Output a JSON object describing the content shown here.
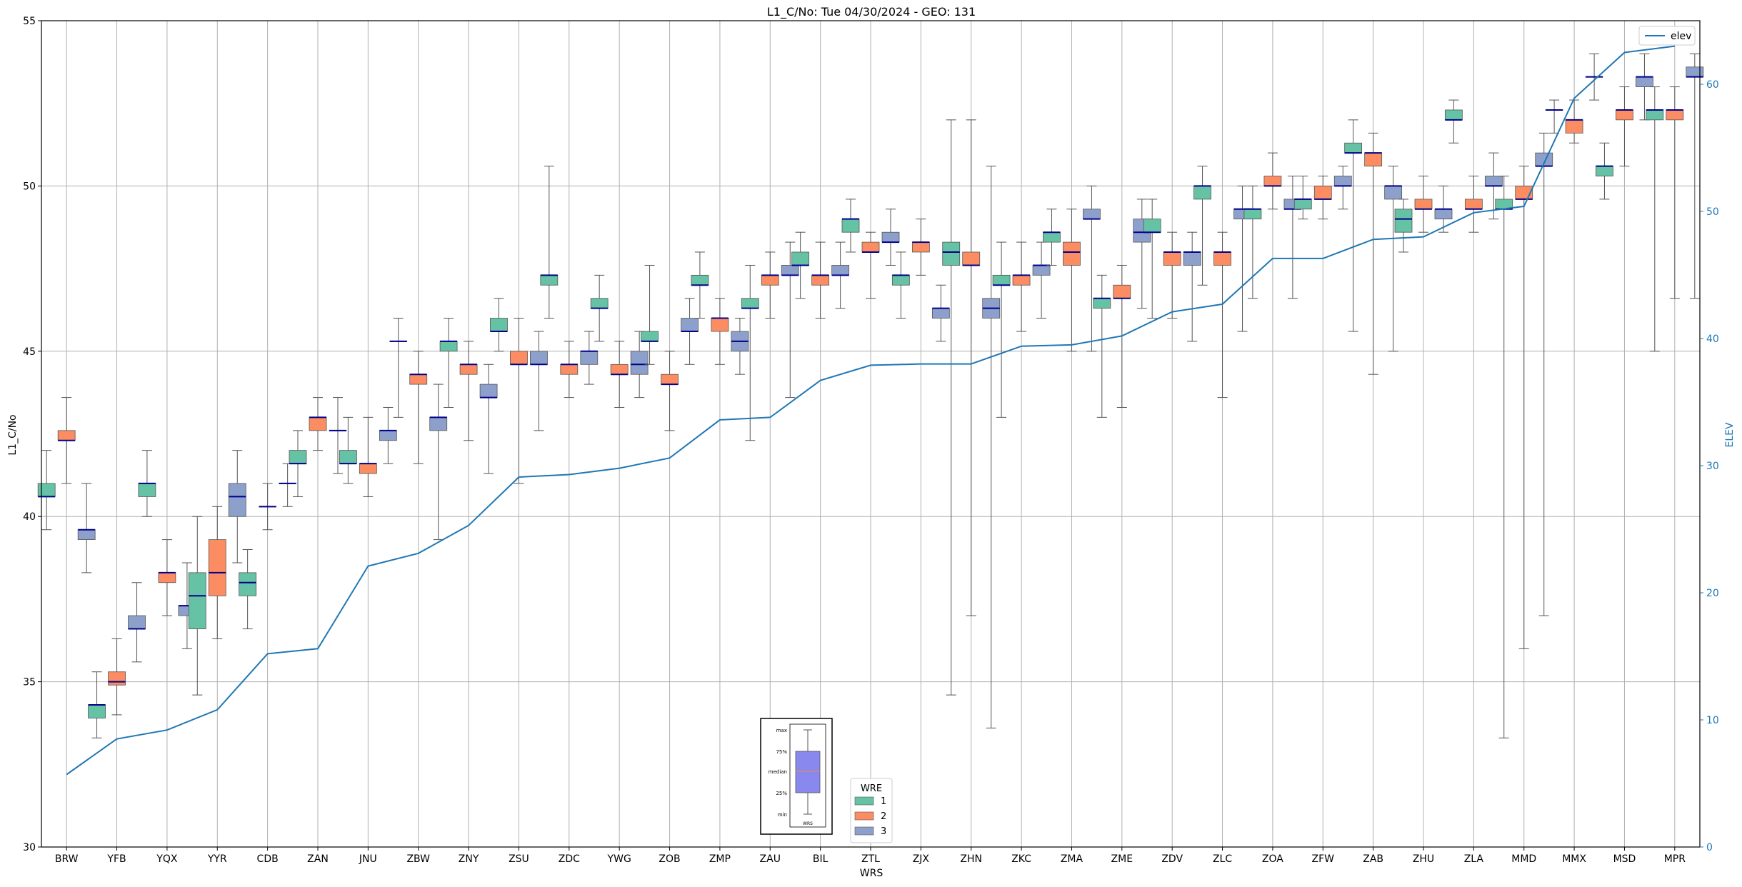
{
  "chart_data": {
    "type": "box",
    "title": "L1_C/No: Tue 04/30/2024 - GEO: 131",
    "xlabel": "WRS",
    "ylabel": "L1_C/No",
    "ylabel2": "ELEV",
    "ylim": [
      30,
      55
    ],
    "ylim2": [
      0,
      65
    ],
    "yticks": [
      "30",
      "35",
      "40",
      "45",
      "50",
      "55"
    ],
    "yticks2": [
      "0",
      "10",
      "20",
      "30",
      "40",
      "50",
      "60"
    ],
    "grid": true,
    "colors": {
      "wre1": "#66c2a5",
      "wre2": "#fc8d62",
      "wre3": "#8da0cb",
      "elev": "#1f77b4",
      "median": "#00008b"
    },
    "categories": [
      "BRW",
      "YFB",
      "YQX",
      "YYR",
      "CDB",
      "ZAN",
      "JNU",
      "ZBW",
      "ZNY",
      "ZSU",
      "ZDC",
      "YWG",
      "ZOB",
      "ZMP",
      "ZAU",
      "BIL",
      "ZTL",
      "ZJX",
      "ZHN",
      "ZKC",
      "ZMA",
      "ZME",
      "ZDV",
      "ZLC",
      "ZOA",
      "ZFW",
      "ZAB",
      "ZHU",
      "ZLA",
      "MMD",
      "MMX",
      "MSD",
      "MPR"
    ],
    "legend_wre": {
      "title": "WRE",
      "entries": [
        "1",
        "2",
        "3"
      ],
      "position": "bottom-center"
    },
    "legend_line": {
      "entries": [
        "elev"
      ],
      "position": "top-right"
    },
    "inset_key": {
      "labels": [
        "max",
        "75%",
        "median",
        "25%",
        "min"
      ],
      "xlabel": "WRS"
    },
    "elev_series": {
      "name": "elev",
      "values": [
        5.7,
        8.5,
        9.2,
        10.8,
        15.2,
        15.6,
        22.1,
        23.1,
        25.3,
        29.1,
        29.3,
        29.8,
        30.6,
        33.6,
        33.8,
        36.7,
        37.9,
        38.0,
        38.0,
        39.4,
        39.5,
        40.2,
        42.1,
        42.7,
        46.3,
        46.3,
        47.8,
        48.0,
        49.9,
        50.4,
        58.9,
        62.5,
        63.0
      ]
    },
    "boxes": [
      {
        "cat": "BRW",
        "wre": "1",
        "min": 39.6,
        "q1": 40.6,
        "median": 40.6,
        "q3": 41.0,
        "max": 42.0
      },
      {
        "cat": "BRW",
        "wre": "2",
        "min": 41.0,
        "q1": 42.3,
        "median": 42.3,
        "q3": 42.6,
        "max": 43.6
      },
      {
        "cat": "BRW",
        "wre": "3",
        "min": 38.3,
        "q1": 39.3,
        "median": 39.6,
        "q3": 39.6,
        "max": 41.0
      },
      {
        "cat": "YFB",
        "wre": "1",
        "min": 33.3,
        "q1": 33.9,
        "median": 34.3,
        "q3": 34.3,
        "max": 35.3
      },
      {
        "cat": "YFB",
        "wre": "2",
        "min": 34.0,
        "q1": 34.9,
        "median": 35.0,
        "q3": 35.3,
        "max": 36.3
      },
      {
        "cat": "YFB",
        "wre": "3",
        "min": 35.6,
        "q1": 36.6,
        "median": 36.6,
        "q3": 37.0,
        "max": 38.0
      },
      {
        "cat": "YQX",
        "wre": "1",
        "min": 40.0,
        "q1": 40.6,
        "median": 41.0,
        "q3": 41.0,
        "max": 42.0
      },
      {
        "cat": "YQX",
        "wre": "2",
        "min": 37.0,
        "q1": 38.0,
        "median": 38.3,
        "q3": 38.3,
        "max": 39.3
      },
      {
        "cat": "YQX",
        "wre": "3",
        "min": 36.0,
        "q1": 37.0,
        "median": 37.3,
        "q3": 37.3,
        "max": 38.6
      },
      {
        "cat": "YYR",
        "wre": "1",
        "min": 34.6,
        "q1": 36.6,
        "median": 37.6,
        "q3": 38.3,
        "max": 40.0
      },
      {
        "cat": "YYR",
        "wre": "2",
        "min": 36.3,
        "q1": 37.6,
        "median": 38.3,
        "q3": 39.3,
        "max": 40.3
      },
      {
        "cat": "YYR",
        "wre": "3",
        "min": 38.6,
        "q1": 40.0,
        "median": 40.6,
        "q3": 41.0,
        "max": 42.0
      },
      {
        "cat": "CDB",
        "wre": "1",
        "min": 36.6,
        "q1": 37.6,
        "median": 38.0,
        "q3": 38.3,
        "max": 39.0
      },
      {
        "cat": "CDB",
        "wre": "2",
        "min": 39.6,
        "q1": 40.3,
        "median": 40.3,
        "q3": 40.3,
        "max": 41.0
      },
      {
        "cat": "CDB",
        "wre": "3",
        "min": 40.3,
        "q1": 41.0,
        "median": 41.0,
        "q3": 41.0,
        "max": 41.6
      },
      {
        "cat": "ZAN",
        "wre": "1",
        "min": 40.6,
        "q1": 41.6,
        "median": 41.6,
        "q3": 42.0,
        "max": 42.6
      },
      {
        "cat": "ZAN",
        "wre": "2",
        "min": 42.0,
        "q1": 42.6,
        "median": 43.0,
        "q3": 43.0,
        "max": 43.6
      },
      {
        "cat": "ZAN",
        "wre": "3",
        "min": 41.3,
        "q1": 42.6,
        "median": 42.6,
        "q3": 42.6,
        "max": 43.6
      },
      {
        "cat": "JNU",
        "wre": "1",
        "min": 41.0,
        "q1": 41.6,
        "median": 41.6,
        "q3": 42.0,
        "max": 43.0
      },
      {
        "cat": "JNU",
        "wre": "2",
        "min": 40.6,
        "q1": 41.3,
        "median": 41.6,
        "q3": 41.6,
        "max": 43.0
      },
      {
        "cat": "JNU",
        "wre": "3",
        "min": 41.6,
        "q1": 42.3,
        "median": 42.6,
        "q3": 42.6,
        "max": 43.3
      },
      {
        "cat": "ZBW",
        "wre": "1",
        "min": 43.0,
        "q1": 45.3,
        "median": 45.3,
        "q3": 45.3,
        "max": 46.0
      },
      {
        "cat": "ZBW",
        "wre": "2",
        "min": 41.6,
        "q1": 44.0,
        "median": 44.3,
        "q3": 44.3,
        "max": 45.0
      },
      {
        "cat": "ZBW",
        "wre": "3",
        "min": 39.3,
        "q1": 42.6,
        "median": 43.0,
        "q3": 43.0,
        "max": 44.0
      },
      {
        "cat": "ZNY",
        "wre": "1",
        "min": 43.3,
        "q1": 45.0,
        "median": 45.3,
        "q3": 45.3,
        "max": 46.0
      },
      {
        "cat": "ZNY",
        "wre": "2",
        "min": 42.3,
        "q1": 44.3,
        "median": 44.6,
        "q3": 44.6,
        "max": 45.3
      },
      {
        "cat": "ZNY",
        "wre": "3",
        "min": 41.3,
        "q1": 43.6,
        "median": 43.6,
        "q3": 44.0,
        "max": 44.6
      },
      {
        "cat": "ZSU",
        "wre": "1",
        "min": 45.0,
        "q1": 45.6,
        "median": 45.6,
        "q3": 46.0,
        "max": 46.6
      },
      {
        "cat": "ZSU",
        "wre": "2",
        "min": 41.0,
        "q1": 44.6,
        "median": 44.6,
        "q3": 45.0,
        "max": 46.0
      },
      {
        "cat": "ZSU",
        "wre": "3",
        "min": 42.6,
        "q1": 44.6,
        "median": 44.6,
        "q3": 45.0,
        "max": 45.6
      },
      {
        "cat": "ZDC",
        "wre": "1",
        "min": 46.0,
        "q1": 47.0,
        "median": 47.3,
        "q3": 47.3,
        "max": 50.6
      },
      {
        "cat": "ZDC",
        "wre": "2",
        "min": 43.6,
        "q1": 44.3,
        "median": 44.6,
        "q3": 44.6,
        "max": 45.3
      },
      {
        "cat": "ZDC",
        "wre": "3",
        "min": 44.0,
        "q1": 44.6,
        "median": 45.0,
        "q3": 45.0,
        "max": 45.6
      },
      {
        "cat": "YWG",
        "wre": "1",
        "min": 45.3,
        "q1": 46.3,
        "median": 46.3,
        "q3": 46.6,
        "max": 47.3
      },
      {
        "cat": "YWG",
        "wre": "2",
        "min": 43.3,
        "q1": 44.3,
        "median": 44.3,
        "q3": 44.6,
        "max": 45.3
      },
      {
        "cat": "YWG",
        "wre": "3",
        "min": 43.6,
        "q1": 44.3,
        "median": 44.6,
        "q3": 45.0,
        "max": 45.6
      },
      {
        "cat": "ZOB",
        "wre": "1",
        "min": 44.6,
        "q1": 45.3,
        "median": 45.3,
        "q3": 45.6,
        "max": 47.6
      },
      {
        "cat": "ZOB",
        "wre": "2",
        "min": 42.6,
        "q1": 44.0,
        "median": 44.0,
        "q3": 44.3,
        "max": 45.0
      },
      {
        "cat": "ZOB",
        "wre": "3",
        "min": 44.6,
        "q1": 45.6,
        "median": 45.6,
        "q3": 46.0,
        "max": 46.6
      },
      {
        "cat": "ZMP",
        "wre": "1",
        "min": 46.0,
        "q1": 47.0,
        "median": 47.0,
        "q3": 47.3,
        "max": 48.0
      },
      {
        "cat": "ZMP",
        "wre": "2",
        "min": 44.6,
        "q1": 45.6,
        "median": 46.0,
        "q3": 46.0,
        "max": 46.6
      },
      {
        "cat": "ZMP",
        "wre": "3",
        "min": 44.3,
        "q1": 45.0,
        "median": 45.3,
        "q3": 45.6,
        "max": 46.0
      },
      {
        "cat": "ZAU",
        "wre": "1",
        "min": 42.3,
        "q1": 46.3,
        "median": 46.3,
        "q3": 46.6,
        "max": 47.6
      },
      {
        "cat": "ZAU",
        "wre": "2",
        "min": 46.0,
        "q1": 47.0,
        "median": 47.3,
        "q3": 47.3,
        "max": 48.0
      },
      {
        "cat": "ZAU",
        "wre": "3",
        "min": 43.6,
        "q1": 47.3,
        "median": 47.3,
        "q3": 47.6,
        "max": 48.3
      },
      {
        "cat": "BIL",
        "wre": "1",
        "min": 46.6,
        "q1": 47.6,
        "median": 47.6,
        "q3": 48.0,
        "max": 48.6
      },
      {
        "cat": "BIL",
        "wre": "2",
        "min": 46.0,
        "q1": 47.0,
        "median": 47.3,
        "q3": 47.3,
        "max": 48.3
      },
      {
        "cat": "BIL",
        "wre": "3",
        "min": 46.3,
        "q1": 47.3,
        "median": 47.3,
        "q3": 47.6,
        "max": 48.3
      },
      {
        "cat": "ZTL",
        "wre": "1",
        "min": 48.0,
        "q1": 48.6,
        "median": 49.0,
        "q3": 49.0,
        "max": 49.6
      },
      {
        "cat": "ZTL",
        "wre": "2",
        "min": 46.6,
        "q1": 48.0,
        "median": 48.0,
        "q3": 48.3,
        "max": 48.6
      },
      {
        "cat": "ZTL",
        "wre": "3",
        "min": 47.6,
        "q1": 48.3,
        "median": 48.3,
        "q3": 48.6,
        "max": 49.3
      },
      {
        "cat": "ZJX",
        "wre": "1",
        "min": 46.0,
        "q1": 47.0,
        "median": 47.3,
        "q3": 47.3,
        "max": 48.0
      },
      {
        "cat": "ZJX",
        "wre": "2",
        "min": 47.3,
        "q1": 48.0,
        "median": 48.3,
        "q3": 48.3,
        "max": 49.0
      },
      {
        "cat": "ZJX",
        "wre": "3",
        "min": 45.3,
        "q1": 46.0,
        "median": 46.3,
        "q3": 46.3,
        "max": 47.0
      },
      {
        "cat": "ZHN",
        "wre": "1",
        "min": 34.6,
        "q1": 47.6,
        "median": 48.0,
        "q3": 48.3,
        "max": 52.0
      },
      {
        "cat": "ZHN",
        "wre": "2",
        "min": 37.0,
        "q1": 47.6,
        "median": 47.6,
        "q3": 48.0,
        "max": 52.0
      },
      {
        "cat": "ZHN",
        "wre": "3",
        "min": 33.6,
        "q1": 46.0,
        "median": 46.3,
        "q3": 46.6,
        "max": 50.6
      },
      {
        "cat": "ZKC",
        "wre": "1",
        "min": 43.0,
        "q1": 47.0,
        "median": 47.0,
        "q3": 47.3,
        "max": 48.3
      },
      {
        "cat": "ZKC",
        "wre": "2",
        "min": 45.6,
        "q1": 47.0,
        "median": 47.3,
        "q3": 47.3,
        "max": 48.3
      },
      {
        "cat": "ZKC",
        "wre": "3",
        "min": 46.0,
        "q1": 47.3,
        "median": 47.6,
        "q3": 47.6,
        "max": 48.3
      },
      {
        "cat": "ZMA",
        "wre": "1",
        "min": 47.6,
        "q1": 48.3,
        "median": 48.6,
        "q3": 48.6,
        "max": 49.3
      },
      {
        "cat": "ZMA",
        "wre": "2",
        "min": 45.0,
        "q1": 47.6,
        "median": 48.0,
        "q3": 48.3,
        "max": 49.3
      },
      {
        "cat": "ZMA",
        "wre": "3",
        "min": 45.0,
        "q1": 49.0,
        "median": 49.0,
        "q3": 49.3,
        "max": 50.0
      },
      {
        "cat": "ZME",
        "wre": "1",
        "min": 43.0,
        "q1": 46.3,
        "median": 46.6,
        "q3": 46.6,
        "max": 47.3
      },
      {
        "cat": "ZME",
        "wre": "2",
        "min": 43.3,
        "q1": 46.6,
        "median": 46.6,
        "q3": 47.0,
        "max": 47.6
      },
      {
        "cat": "ZME",
        "wre": "3",
        "min": 46.3,
        "q1": 48.3,
        "median": 48.6,
        "q3": 49.0,
        "max": 49.6
      },
      {
        "cat": "ZDV",
        "wre": "1",
        "min": 46.0,
        "q1": 48.6,
        "median": 48.6,
        "q3": 49.0,
        "max": 49.6
      },
      {
        "cat": "ZDV",
        "wre": "2",
        "min": 46.0,
        "q1": 47.6,
        "median": 48.0,
        "q3": 48.0,
        "max": 48.6
      },
      {
        "cat": "ZDV",
        "wre": "3",
        "min": 45.3,
        "q1": 47.6,
        "median": 48.0,
        "q3": 48.0,
        "max": 48.6
      },
      {
        "cat": "ZLC",
        "wre": "1",
        "min": 47.0,
        "q1": 49.6,
        "median": 50.0,
        "q3": 50.0,
        "max": 50.6
      },
      {
        "cat": "ZLC",
        "wre": "2",
        "min": 43.6,
        "q1": 47.6,
        "median": 48.0,
        "q3": 48.0,
        "max": 48.6
      },
      {
        "cat": "ZLC",
        "wre": "3",
        "min": 45.6,
        "q1": 49.0,
        "median": 49.3,
        "q3": 49.3,
        "max": 50.0
      },
      {
        "cat": "ZOA",
        "wre": "1",
        "min": 46.6,
        "q1": 49.0,
        "median": 49.3,
        "q3": 49.3,
        "max": 50.0
      },
      {
        "cat": "ZOA",
        "wre": "2",
        "min": 49.3,
        "q1": 50.0,
        "median": 50.0,
        "q3": 50.3,
        "max": 51.0
      },
      {
        "cat": "ZOA",
        "wre": "3",
        "min": 46.6,
        "q1": 49.3,
        "median": 49.3,
        "q3": 49.6,
        "max": 50.3
      },
      {
        "cat": "ZFW",
        "wre": "1",
        "min": 49.0,
        "q1": 49.3,
        "median": 49.6,
        "q3": 49.6,
        "max": 50.3
      },
      {
        "cat": "ZFW",
        "wre": "2",
        "min": 49.0,
        "q1": 49.6,
        "median": 49.6,
        "q3": 50.0,
        "max": 50.3
      },
      {
        "cat": "ZFW",
        "wre": "3",
        "min": 49.3,
        "q1": 50.0,
        "median": 50.0,
        "q3": 50.3,
        "max": 50.6
      },
      {
        "cat": "ZAB",
        "wre": "1",
        "min": 45.6,
        "q1": 51.0,
        "median": 51.0,
        "q3": 51.3,
        "max": 52.0
      },
      {
        "cat": "ZAB",
        "wre": "2",
        "min": 44.3,
        "q1": 50.6,
        "median": 51.0,
        "q3": 51.0,
        "max": 51.6
      },
      {
        "cat": "ZAB",
        "wre": "3",
        "min": 45.0,
        "q1": 49.6,
        "median": 50.0,
        "q3": 50.0,
        "max": 50.6
      },
      {
        "cat": "ZHU",
        "wre": "1",
        "min": 48.0,
        "q1": 48.6,
        "median": 49.0,
        "q3": 49.3,
        "max": 49.6
      },
      {
        "cat": "ZHU",
        "wre": "2",
        "min": 48.6,
        "q1": 49.3,
        "median": 49.3,
        "q3": 49.6,
        "max": 50.3
      },
      {
        "cat": "ZHU",
        "wre": "3",
        "min": 48.6,
        "q1": 49.0,
        "median": 49.3,
        "q3": 49.3,
        "max": 50.0
      },
      {
        "cat": "ZLA",
        "wre": "1",
        "min": 51.3,
        "q1": 52.0,
        "median": 52.0,
        "q3": 52.3,
        "max": 52.6
      },
      {
        "cat": "ZLA",
        "wre": "2",
        "min": 48.6,
        "q1": 49.3,
        "median": 49.3,
        "q3": 49.6,
        "max": 50.3
      },
      {
        "cat": "ZLA",
        "wre": "3",
        "min": 49.0,
        "q1": 50.0,
        "median": 50.0,
        "q3": 50.3,
        "max": 51.0
      },
      {
        "cat": "MMD",
        "wre": "1",
        "min": 33.3,
        "q1": 49.3,
        "median": 49.3,
        "q3": 49.6,
        "max": 50.3
      },
      {
        "cat": "MMD",
        "wre": "2",
        "min": 36.0,
        "q1": 49.6,
        "median": 49.6,
        "q3": 50.0,
        "max": 50.6
      },
      {
        "cat": "MMD",
        "wre": "3",
        "min": 37.0,
        "q1": 50.6,
        "median": 50.6,
        "q3": 51.0,
        "max": 51.6
      },
      {
        "cat": "MMX",
        "wre": "1",
        "min": 51.6,
        "q1": 52.3,
        "median": 52.3,
        "q3": 52.3,
        "max": 52.6
      },
      {
        "cat": "MMX",
        "wre": "2",
        "min": 51.3,
        "q1": 51.6,
        "median": 52.0,
        "q3": 52.0,
        "max": 52.6
      },
      {
        "cat": "MMX",
        "wre": "3",
        "min": 52.6,
        "q1": 53.3,
        "median": 53.3,
        "q3": 53.3,
        "max": 54.0
      },
      {
        "cat": "MSD",
        "wre": "1",
        "min": 49.6,
        "q1": 50.3,
        "median": 50.6,
        "q3": 50.6,
        "max": 51.3
      },
      {
        "cat": "MSD",
        "wre": "2",
        "min": 50.6,
        "q1": 52.0,
        "median": 52.3,
        "q3": 52.3,
        "max": 53.0
      },
      {
        "cat": "MSD",
        "wre": "3",
        "min": 52.0,
        "q1": 53.0,
        "median": 53.3,
        "q3": 53.3,
        "max": 54.0
      },
      {
        "cat": "MPR",
        "wre": "1",
        "min": 45.0,
        "q1": 52.0,
        "median": 52.3,
        "q3": 52.3,
        "max": 53.0
      },
      {
        "cat": "MPR",
        "wre": "2",
        "min": 46.6,
        "q1": 52.0,
        "median": 52.3,
        "q3": 52.3,
        "max": 53.0
      },
      {
        "cat": "MPR",
        "wre": "3",
        "min": 46.6,
        "q1": 53.3,
        "median": 53.3,
        "q3": 53.6,
        "max": 54.0
      }
    ]
  }
}
